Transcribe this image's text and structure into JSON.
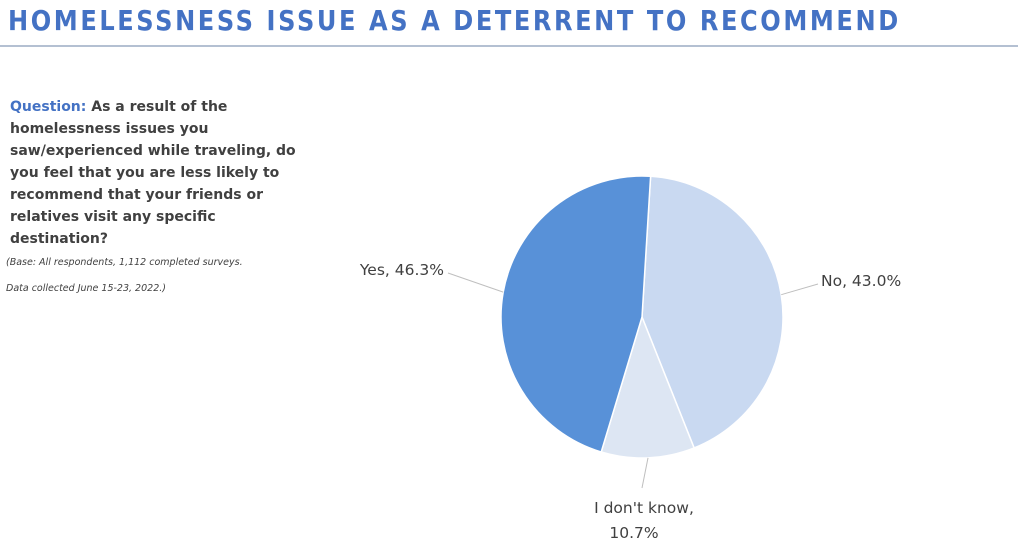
{
  "header": {
    "title": "HOMELESSNESS ISSUE AS A DETERRENT TO RECOMMEND"
  },
  "question": {
    "label": "Question:",
    "text": " As a result of the homelessness issues you saw/experienced while traveling, do you feel that you are less likely to recommend that your friends or relatives visit any specific destination?"
  },
  "base_note": {
    "line1": "(Base: All respondents, 1,112 completed surveys.",
    "line2": "Data collected June 15-23, 2022.)"
  },
  "chart_data": {
    "type": "pie",
    "title": "",
    "slices": [
      {
        "label": "No",
        "value": 43.0,
        "display": "No, 43.0%",
        "color": "#c9d9f1"
      },
      {
        "label": "I don't know",
        "value": 10.7,
        "display_lines": [
          "I don't know,",
          "10.7%"
        ],
        "color": "#dde6f3"
      },
      {
        "label": "Yes",
        "value": 46.3,
        "display": "Yes, 46.3%",
        "color": "#5891d8"
      }
    ],
    "colors": {
      "leader_line": "#bfbfbf",
      "slice_border": "#ffffff"
    }
  }
}
